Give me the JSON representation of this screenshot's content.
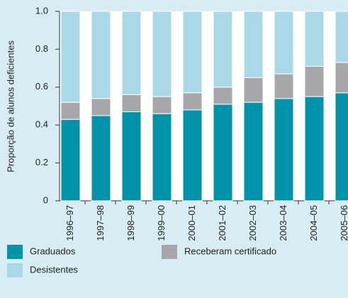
{
  "chart_data": {
    "type": "stacked_bar",
    "y_label": "Proporção de alunos deficientes",
    "categories": [
      "1996–97",
      "1997–98",
      "1998–99",
      "1999–00",
      "2000–01",
      "2001–02",
      "2002–03",
      "2003–04",
      "2004–05",
      "2005–06"
    ],
    "series": [
      {
        "name": "Graduados",
        "color": "#0092a9",
        "values": [
          0.43,
          0.45,
          0.47,
          0.46,
          0.48,
          0.51,
          0.52,
          0.54,
          0.55,
          0.57
        ]
      },
      {
        "name": "Receberam certificado",
        "color": "#a7a7a9",
        "values": [
          0.09,
          0.09,
          0.09,
          0.09,
          0.09,
          0.09,
          0.13,
          0.13,
          0.16,
          0.16
        ]
      },
      {
        "name": "Desistentes",
        "color": "#a9d9e6",
        "values": [
          0.48,
          0.46,
          0.44,
          0.45,
          0.43,
          0.4,
          0.35,
          0.33,
          0.29,
          0.27
        ]
      }
    ],
    "ylim": [
      0,
      1
    ],
    "yticks": [
      0,
      0.2,
      0.4,
      0.6,
      0.8,
      {
        "value": 1,
        "label": "1.0"
      }
    ]
  }
}
